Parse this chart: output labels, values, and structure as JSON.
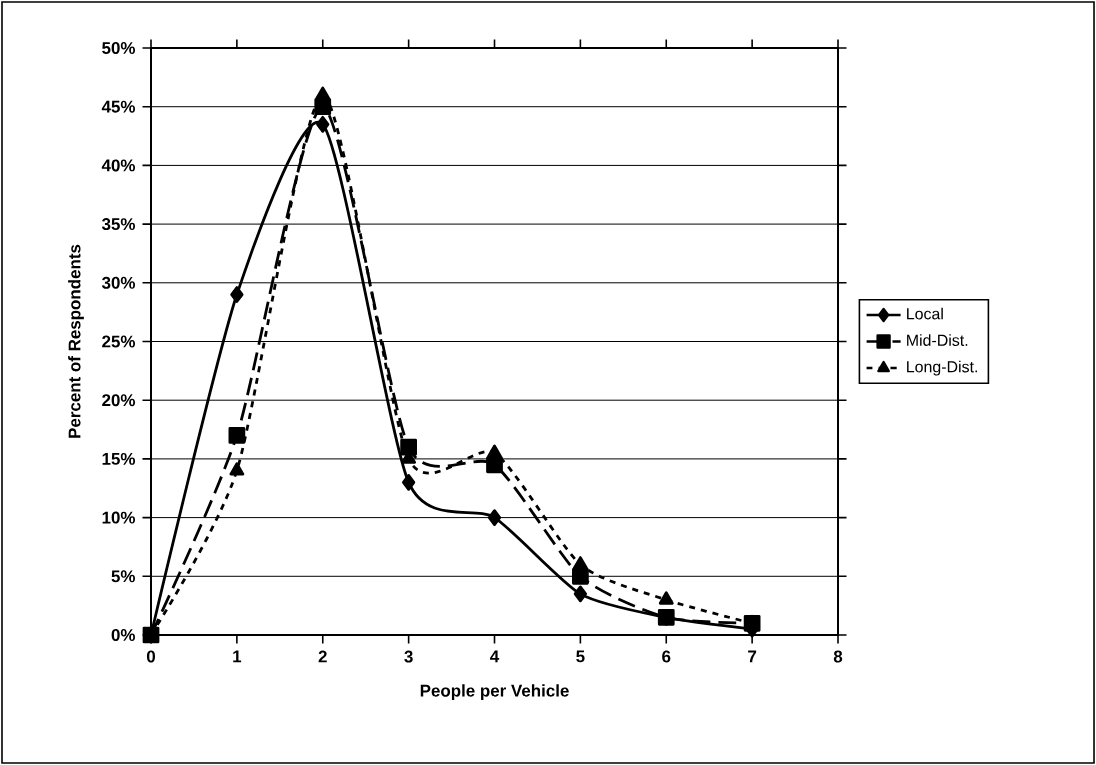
{
  "chart_data": {
    "type": "line",
    "xlabel": "People per Vehicle",
    "ylabel": "Percent of Respondents",
    "x": [
      0,
      1,
      2,
      3,
      4,
      5,
      6,
      7
    ],
    "series": [
      {
        "name": "Local",
        "color": "#000000",
        "marker": "diamond",
        "line_style": "solid",
        "values": [
          0,
          29,
          43.5,
          13,
          10,
          3.5,
          1.5,
          0.5
        ]
      },
      {
        "name": "Mid-Dist.",
        "color": "#000000",
        "marker": "square",
        "line_style": "dashed",
        "values": [
          0,
          17,
          45,
          16,
          14.5,
          5,
          1.5,
          1
        ]
      },
      {
        "name": "Long-Dist.",
        "color": "#000000",
        "marker": "triangle",
        "line_style": "dotted",
        "values": [
          0,
          14,
          46,
          15,
          15.5,
          6,
          3,
          1
        ]
      }
    ],
    "xlim": [
      0,
      8
    ],
    "xticks": [
      0,
      1,
      2,
      3,
      4,
      5,
      6,
      7,
      8
    ],
    "ylim": [
      0,
      50
    ],
    "yticks": [
      {
        "value": 0,
        "label": "0%"
      },
      {
        "value": 5,
        "label": "5%"
      },
      {
        "value": 10,
        "label": "10%"
      },
      {
        "value": 15,
        "label": "15%"
      },
      {
        "value": 20,
        "label": "20%"
      },
      {
        "value": 25,
        "label": "25%"
      },
      {
        "value": 30,
        "label": "30%"
      },
      {
        "value": 35,
        "label": "35%"
      },
      {
        "value": 40,
        "label": "40%"
      },
      {
        "value": 45,
        "label": "45%"
      },
      {
        "value": 50,
        "label": "50%"
      }
    ],
    "grid": "y",
    "legend": "right"
  }
}
